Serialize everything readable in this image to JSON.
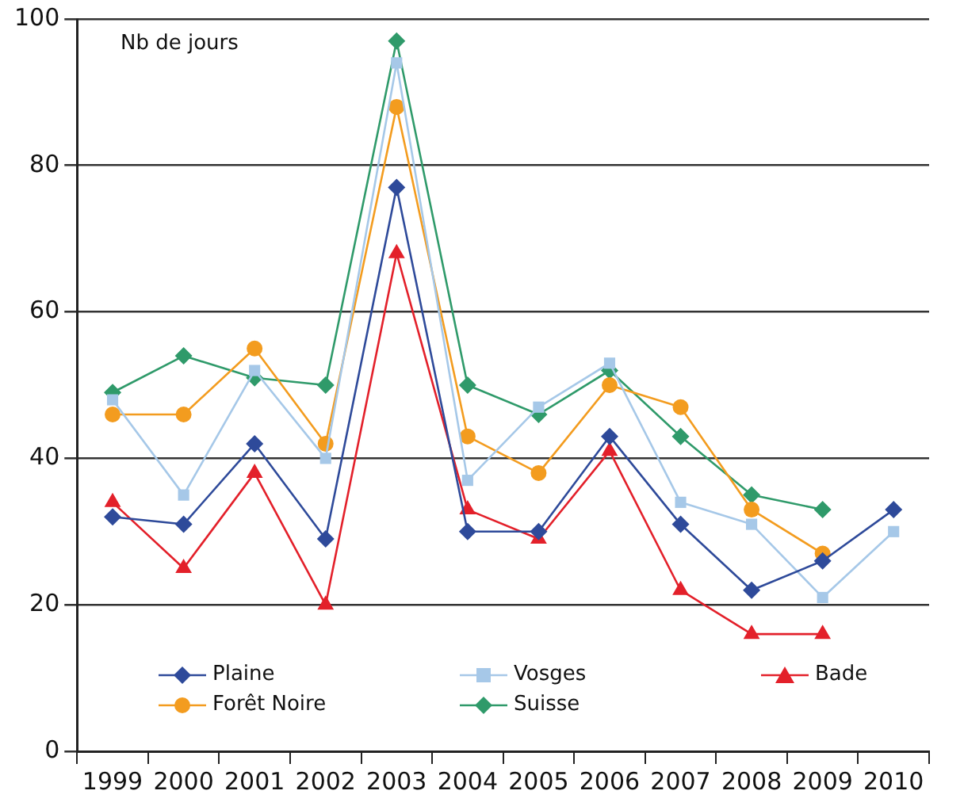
{
  "chart_data": {
    "type": "line",
    "ylabel": "Nb de jours",
    "categories": [
      "1999",
      "2000",
      "2001",
      "2002",
      "2003",
      "2004",
      "2005",
      "2006",
      "2007",
      "2008",
      "2009",
      "2010"
    ],
    "series": [
      {
        "name": "Plaine",
        "color": "#2e4a9a",
        "marker": "diamond",
        "values": [
          32,
          31,
          42,
          29,
          77,
          30,
          30,
          43,
          31,
          22,
          26,
          33
        ]
      },
      {
        "name": "Vosges",
        "color": "#a6c8e8",
        "marker": "square",
        "values": [
          48,
          35,
          52,
          40,
          94,
          37,
          47,
          53,
          34,
          31,
          21,
          30
        ]
      },
      {
        "name": "Bade",
        "color": "#e3202a",
        "marker": "triangle",
        "values": [
          34,
          25,
          38,
          20,
          68,
          33,
          29,
          41,
          22,
          16,
          16,
          null
        ]
      },
      {
        "name": "Forêt Noire",
        "color": "#f39c1f",
        "marker": "circle",
        "values": [
          46,
          46,
          55,
          42,
          88,
          43,
          38,
          50,
          47,
          33,
          27,
          null
        ]
      },
      {
        "name": "Suisse",
        "color": "#2f9a6a",
        "marker": "diamond",
        "values": [
          49,
          54,
          51,
          50,
          97,
          50,
          46,
          52,
          43,
          35,
          33,
          null
        ]
      }
    ],
    "ylim": [
      0,
      100
    ],
    "yticks": [
      0,
      20,
      40,
      60,
      80,
      100
    ],
    "grid": "y",
    "legend": "bottom left",
    "line_style": "solid"
  }
}
